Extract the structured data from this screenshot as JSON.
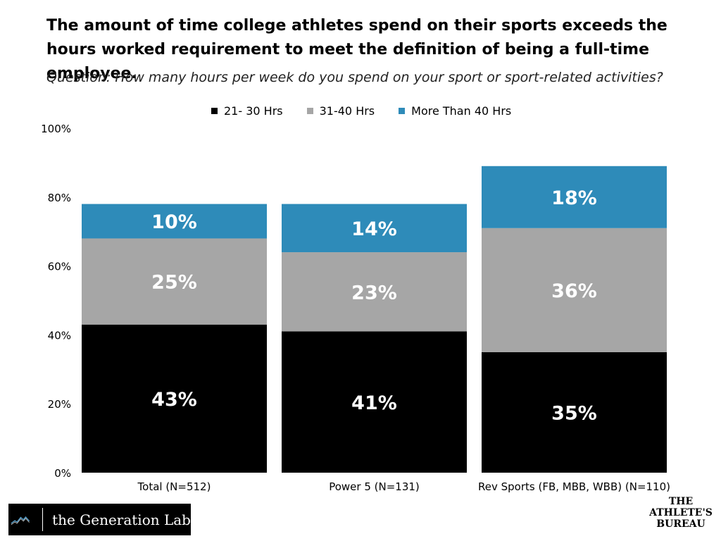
{
  "title": "The amount of time college athletes spend on their sports exceeds the hours worked requirement to meet the definition of being a full-time employee.",
  "subtitle": "Question: How many hours per week do you spend on your sport or sport-related activities?",
  "chart_data": {
    "type": "bar",
    "stacked": true,
    "categories": [
      "Total (N=512)",
      "Power 5 (N=131)",
      "Rev Sports (FB, MBB, WBB) (N=110)"
    ],
    "series": [
      {
        "name": "21- 30 Hrs",
        "values": [
          43,
          41,
          35
        ],
        "labels": [
          "43%",
          "41%",
          "35%"
        ],
        "color": "#000000"
      },
      {
        "name": "31-40 Hrs",
        "values": [
          25,
          23,
          36
        ],
        "labels": [
          "25%",
          "23%",
          "36%"
        ],
        "color": "#a6a6a6"
      },
      {
        "name": "More Than 40 Hrs",
        "values": [
          10,
          14,
          18
        ],
        "labels": [
          "10%",
          "14%",
          "18%"
        ],
        "color": "#2e8bb9"
      }
    ],
    "ylim": [
      0,
      100
    ],
    "yticks": [
      "0%",
      "20%",
      "40%",
      "60%",
      "80%",
      "100%"
    ],
    "legend_position": "top",
    "grid": false
  },
  "logos": {
    "left": "the Generation Lab",
    "right": [
      "THE",
      "ATHLETE'S",
      "BUREAU"
    ]
  }
}
